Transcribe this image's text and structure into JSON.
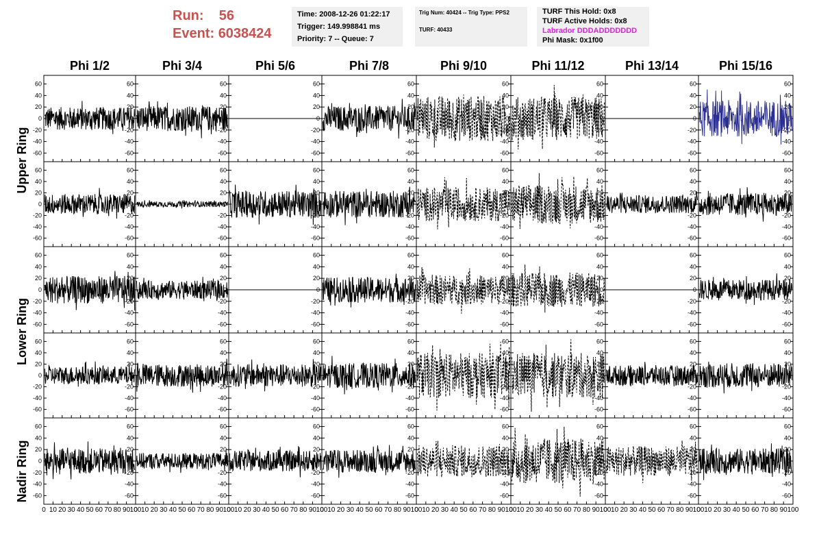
{
  "header": {
    "run_label": "Run:",
    "run_value": "56",
    "event_label": "Event:",
    "event_value": "6038424"
  },
  "info_time": {
    "time": "Time: 2008-12-26 01:22:17",
    "trigger": "Trigger: 149.998841 ms",
    "priority": "Priority: 7 -- Queue: 7"
  },
  "info_trig": {
    "trig": "Trig Num: 40424 -- Trig Type: PPS2",
    "turf": "TURF: 40433"
  },
  "info_turf": {
    "this_hold": "TURF This Hold: 0x8",
    "active_holds": "TURF Active Holds: 0x8",
    "labrador": "Labrador DDDADDDDDDD",
    "phi_mask": "Phi Mask: 0x1f00"
  },
  "columns": [
    "Phi 1/2",
    "Phi 3/4",
    "Phi 5/6",
    "Phi 7/8",
    "Phi 9/10",
    "Phi 11/12",
    "Phi 13/14",
    "Phi 15/16"
  ],
  "rings": [
    "Upper Ring",
    "Lower Ring",
    "Nadir Ring"
  ],
  "y_ticks": [
    "60",
    "40",
    "20",
    "0",
    "-20",
    "-40",
    "-60"
  ],
  "x_ticks": [
    "0",
    "10",
    "20",
    "30",
    "40",
    "50",
    "60",
    "70",
    "80",
    "90",
    "100"
  ],
  "colors": {
    "header_red": "#c8524f",
    "labrador_magenta": "#e020e0",
    "box_bg": "#f0f0f0",
    "trace_default": "#000000",
    "trace_blue": "#2b2f8f"
  },
  "chart_data": {
    "type": "line",
    "description_grid": "5 rows x 8 columns of waveform panels",
    "ylim": [
      -75,
      75
    ],
    "xlim": [
      0,
      100
    ],
    "panels": [
      {
        "row": 0,
        "col": 0,
        "amp": 20,
        "style": "solid",
        "color": "black"
      },
      {
        "row": 0,
        "col": 1,
        "amp": 22,
        "style": "solid",
        "color": "black"
      },
      {
        "row": 0,
        "col": 2,
        "amp": 0,
        "style": "flat",
        "color": "black"
      },
      {
        "row": 0,
        "col": 3,
        "amp": 22,
        "style": "solid",
        "color": "black"
      },
      {
        "row": 0,
        "col": 4,
        "amp": 40,
        "style": "dashed",
        "color": "black"
      },
      {
        "row": 0,
        "col": 5,
        "amp": 38,
        "style": "dashed",
        "color": "black"
      },
      {
        "row": 0,
        "col": 6,
        "amp": 0,
        "style": "flat",
        "color": "black"
      },
      {
        "row": 0,
        "col": 7,
        "amp": 32,
        "style": "solid",
        "color": "blue"
      },
      {
        "row": 1,
        "col": 0,
        "amp": 18,
        "style": "solid",
        "color": "black"
      },
      {
        "row": 1,
        "col": 1,
        "amp": 5,
        "style": "solid",
        "color": "black"
      },
      {
        "row": 1,
        "col": 2,
        "amp": 24,
        "style": "solid",
        "color": "black"
      },
      {
        "row": 1,
        "col": 3,
        "amp": 24,
        "style": "solid",
        "color": "black"
      },
      {
        "row": 1,
        "col": 4,
        "amp": 30,
        "style": "dashed",
        "color": "black"
      },
      {
        "row": 1,
        "col": 5,
        "amp": 35,
        "style": "dashed",
        "color": "black"
      },
      {
        "row": 1,
        "col": 6,
        "amp": 16,
        "style": "solid",
        "color": "black"
      },
      {
        "row": 1,
        "col": 7,
        "amp": 20,
        "style": "solid",
        "color": "black"
      },
      {
        "row": 2,
        "col": 0,
        "amp": 24,
        "style": "solid",
        "color": "black"
      },
      {
        "row": 2,
        "col": 1,
        "amp": 16,
        "style": "solid",
        "color": "black"
      },
      {
        "row": 2,
        "col": 2,
        "amp": 0,
        "style": "flat",
        "color": "black"
      },
      {
        "row": 2,
        "col": 3,
        "amp": 22,
        "style": "solid",
        "color": "black"
      },
      {
        "row": 2,
        "col": 4,
        "amp": 26,
        "style": "dashed",
        "color": "black"
      },
      {
        "row": 2,
        "col": 5,
        "amp": 30,
        "style": "dashed",
        "color": "black"
      },
      {
        "row": 2,
        "col": 6,
        "amp": 0,
        "style": "flat",
        "color": "black"
      },
      {
        "row": 2,
        "col": 7,
        "amp": 18,
        "style": "solid",
        "color": "black"
      },
      {
        "row": 3,
        "col": 0,
        "amp": 16,
        "style": "solid",
        "color": "black"
      },
      {
        "row": 3,
        "col": 1,
        "amp": 20,
        "style": "solid",
        "color": "black"
      },
      {
        "row": 3,
        "col": 2,
        "amp": 20,
        "style": "solid",
        "color": "black"
      },
      {
        "row": 3,
        "col": 3,
        "amp": 22,
        "style": "solid",
        "color": "black"
      },
      {
        "row": 3,
        "col": 4,
        "amp": 40,
        "style": "dashed",
        "color": "black"
      },
      {
        "row": 3,
        "col": 5,
        "amp": 40,
        "style": "dashed",
        "color": "black"
      },
      {
        "row": 3,
        "col": 6,
        "amp": 18,
        "style": "solid",
        "color": "black"
      },
      {
        "row": 3,
        "col": 7,
        "amp": 22,
        "style": "solid",
        "color": "black"
      },
      {
        "row": 4,
        "col": 0,
        "amp": 22,
        "style": "solid",
        "color": "black"
      },
      {
        "row": 4,
        "col": 1,
        "amp": 14,
        "style": "solid",
        "color": "black"
      },
      {
        "row": 4,
        "col": 2,
        "amp": 18,
        "style": "solid",
        "color": "black"
      },
      {
        "row": 4,
        "col": 3,
        "amp": 20,
        "style": "solid",
        "color": "black"
      },
      {
        "row": 4,
        "col": 4,
        "amp": 28,
        "style": "dashed",
        "color": "black"
      },
      {
        "row": 4,
        "col": 5,
        "amp": 40,
        "style": "dashed",
        "color": "black"
      },
      {
        "row": 4,
        "col": 6,
        "amp": 26,
        "style": "dashed",
        "color": "black"
      },
      {
        "row": 4,
        "col": 7,
        "amp": 22,
        "style": "solid",
        "color": "black"
      }
    ]
  }
}
